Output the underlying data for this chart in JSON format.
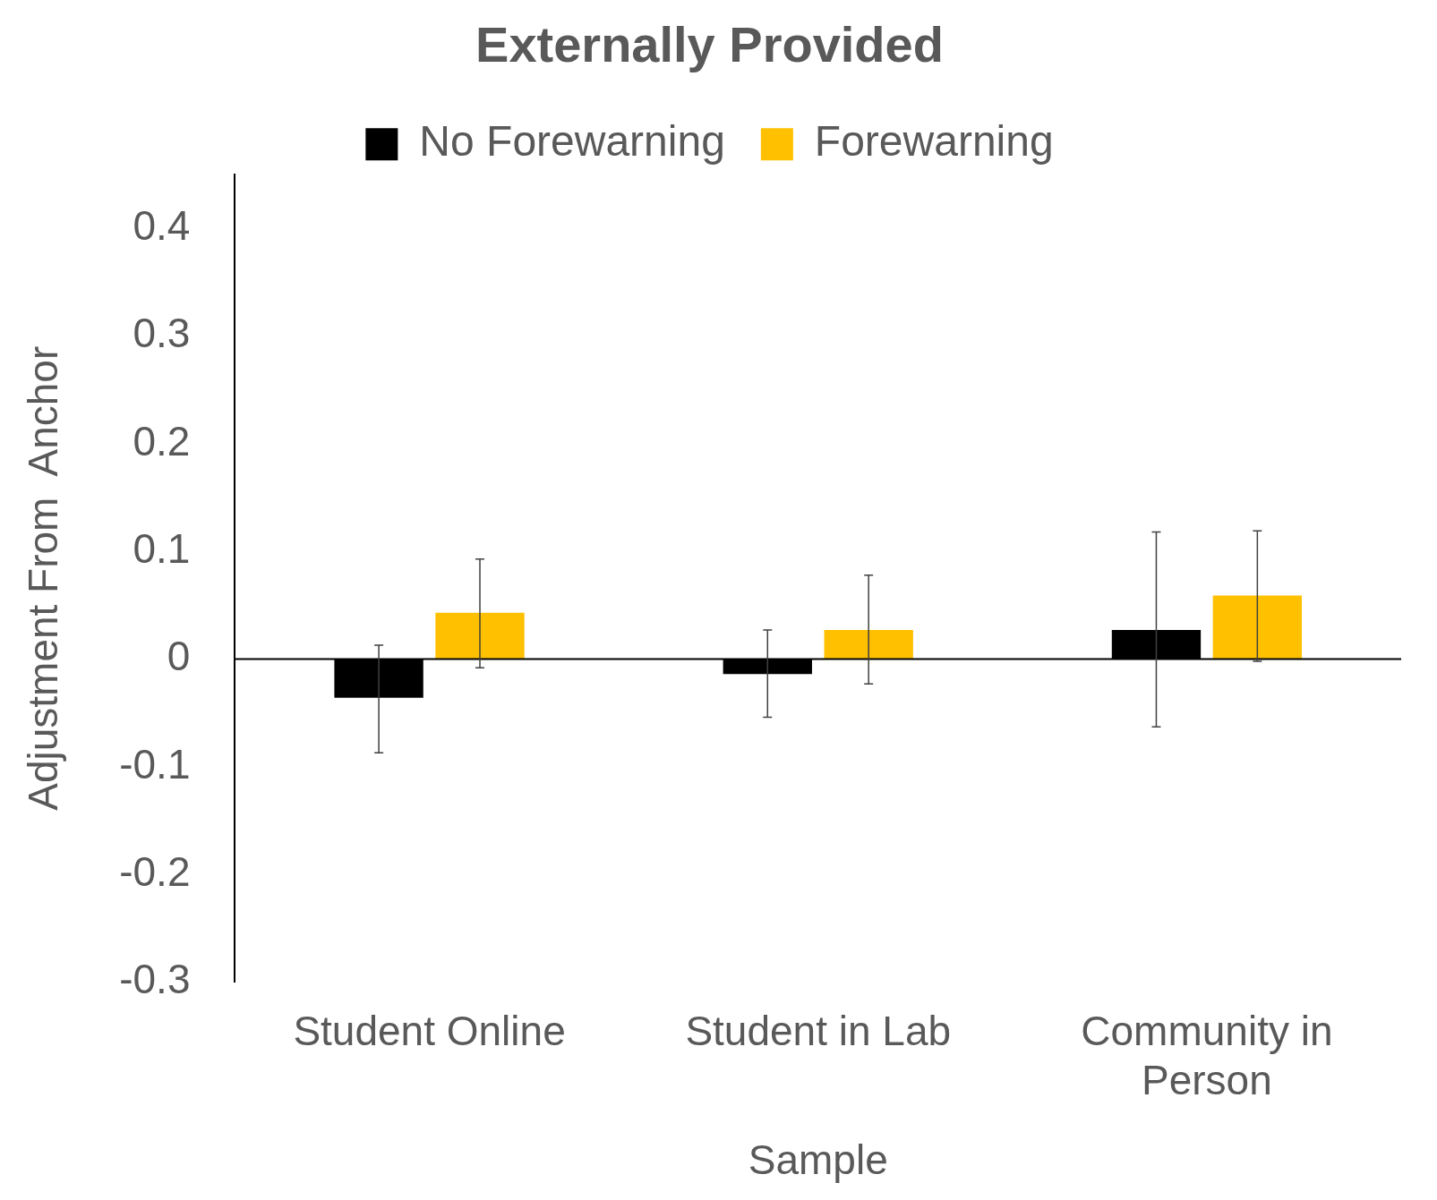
{
  "chart_data": {
    "type": "bar",
    "title": "Externally Provided",
    "xlabel": "Sample",
    "ylabel": "Adjustment From  Anchor",
    "categories": [
      "Student Online",
      "Student in Lab",
      "Community in Person"
    ],
    "series": [
      {
        "name": "No Forewarning",
        "color": "#000000",
        "values": [
          -0.036,
          -0.014,
          0.027
        ],
        "errors": [
          [
            -0.087,
            0.013
          ],
          [
            -0.054,
            0.027
          ],
          [
            -0.063,
            0.118
          ]
        ]
      },
      {
        "name": "Forewarning",
        "color": "#ffc000",
        "values": [
          0.043,
          0.027,
          0.059
        ],
        "errors": [
          [
            -0.008,
            0.093
          ],
          [
            -0.023,
            0.078
          ],
          [
            -0.002,
            0.119
          ]
        ]
      }
    ],
    "ylim": [
      -0.3,
      0.45
    ],
    "yticks": [
      -0.3,
      -0.2,
      -0.1,
      0,
      0.1,
      0.2,
      0.3,
      0.4
    ],
    "ref_lines": [
      {
        "axis": "y",
        "value": 0,
        "color": "#000000"
      }
    ],
    "grid": false,
    "legend": "top"
  }
}
